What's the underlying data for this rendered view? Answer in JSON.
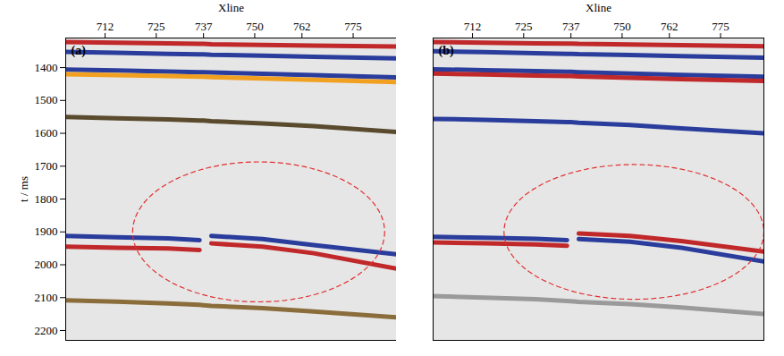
{
  "chart_data": [
    {
      "type": "line",
      "title": "(a)",
      "x_label": "Xline",
      "y_label": "t / ms",
      "xlim": [
        702,
        786
      ],
      "xticks": [
        712,
        725,
        737,
        750,
        762,
        775
      ],
      "ylim": [
        1310,
        2230
      ],
      "yticks": [
        1400,
        1500,
        1600,
        1700,
        1800,
        1900,
        2000,
        2100,
        2200
      ],
      "x": [
        702,
        715,
        728,
        736,
        737,
        739,
        752,
        765,
        786
      ],
      "series": [
        {
          "color": "#c0282a",
          "values": [
            1322,
            1324,
            1326,
            1328,
            1328,
            1329,
            1331,
            1333,
            1336
          ]
        },
        {
          "color": "#2a3d9c",
          "values": [
            1352,
            1355,
            1358,
            1360,
            1360,
            1361,
            1364,
            1367,
            1372
          ]
        },
        {
          "color": "#2a3d9c",
          "values": [
            1406,
            1409,
            1412,
            1414,
            1414,
            1415,
            1419,
            1423,
            1430
          ]
        },
        {
          "color": "#f2a020",
          "values": [
            1420,
            1423,
            1426,
            1428,
            1428,
            1429,
            1433,
            1437,
            1444
          ]
        },
        {
          "color": "#5a4a2e",
          "values": [
            1550,
            1554,
            1558,
            1561,
            1561,
            1563,
            1570,
            1578,
            1596
          ]
        },
        {
          "color": "#2a3d9c",
          "values": [
            1912,
            1916,
            1920,
            1925,
            null,
            1912,
            1922,
            1940,
            1968
          ]
        },
        {
          "color": "#c0282a",
          "values": [
            1945,
            1948,
            1950,
            1955,
            null,
            1935,
            1945,
            1965,
            2012
          ]
        },
        {
          "color": "#8a6d3b",
          "values": [
            2108,
            2112,
            2118,
            2122,
            2123,
            2125,
            2132,
            2142,
            2160
          ]
        }
      ],
      "highlight": {
        "cx": 751,
        "cy": 1900,
        "rx": 32,
        "ry": 213,
        "color": "#e03030",
        "line_style": "dashed"
      }
    },
    {
      "type": "line",
      "title": "(b)",
      "x_label": "Xline",
      "tick_labels": "x",
      "xlim": [
        702,
        786
      ],
      "xticks": [
        712,
        725,
        737,
        750,
        762,
        775
      ],
      "ylim": [
        1310,
        2230
      ],
      "x": [
        702,
        715,
        728,
        736,
        737,
        739,
        752,
        765,
        786
      ],
      "series": [
        {
          "color": "#c0282a",
          "values": [
            1322,
            1324,
            1326,
            1327,
            1327,
            1328,
            1330,
            1332,
            1335
          ]
        },
        {
          "color": "#2a3d9c",
          "values": [
            1350,
            1353,
            1356,
            1358,
            1358,
            1359,
            1362,
            1365,
            1370
          ]
        },
        {
          "color": "#2a3d9c",
          "values": [
            1405,
            1408,
            1411,
            1413,
            1413,
            1414,
            1418,
            1422,
            1428
          ]
        },
        {
          "color": "#c0282a",
          "values": [
            1418,
            1421,
            1424,
            1426,
            1426,
            1427,
            1431,
            1435,
            1441
          ]
        },
        {
          "color": "#2a3d9c",
          "values": [
            1556,
            1559,
            1563,
            1566,
            1566,
            1568,
            1575,
            1585,
            1600
          ]
        },
        {
          "color": "#2a3d9c",
          "values": [
            1915,
            1918,
            1921,
            1925,
            null,
            1922,
            1930,
            1948,
            1990
          ]
        },
        {
          "color": "#c0282a",
          "values": [
            1932,
            1935,
            1938,
            1942,
            null,
            1905,
            1912,
            1928,
            1960
          ]
        },
        {
          "color": "#9a9a9a",
          "values": [
            2095,
            2100,
            2105,
            2110,
            2111,
            2113,
            2120,
            2130,
            2150
          ]
        }
      ],
      "highlight": {
        "cx": 753,
        "cy": 1900,
        "rx": 33,
        "ry": 205,
        "color": "#e03030",
        "line_style": "dashed"
      }
    }
  ]
}
